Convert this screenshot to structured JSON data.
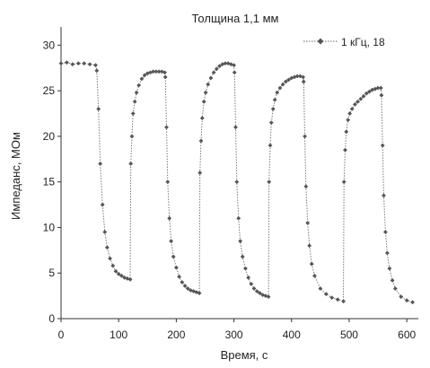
{
  "chart_data": {
    "type": "scatter",
    "title": "Толщина 1,1 мм",
    "xlabel": "Время, с",
    "ylabel": "Импеданс, МОм",
    "xlim": [
      0,
      620
    ],
    "ylim": [
      0,
      32
    ],
    "xticks": [
      0,
      100,
      200,
      300,
      400,
      500,
      600
    ],
    "yticks": [
      0,
      5,
      10,
      15,
      20,
      25,
      30
    ],
    "grid": false,
    "legend_position": "top-right",
    "series": [
      {
        "name": "1 кГц, 18",
        "color": "#555555",
        "marker": "diamond",
        "x": [
          0,
          10,
          20,
          30,
          40,
          50,
          60,
          62,
          65,
          68,
          72,
          76,
          80,
          85,
          90,
          95,
          100,
          105,
          110,
          115,
          120,
          121,
          123,
          125,
          128,
          131,
          135,
          140,
          145,
          150,
          155,
          160,
          165,
          170,
          175,
          180,
          181,
          183,
          185,
          188,
          191,
          195,
          200,
          205,
          210,
          215,
          220,
          225,
          230,
          235,
          240,
          241,
          243,
          245,
          248,
          251,
          255,
          260,
          265,
          270,
          275,
          280,
          285,
          290,
          295,
          300,
          301,
          303,
          305,
          308,
          311,
          315,
          320,
          325,
          330,
          335,
          340,
          345,
          350,
          355,
          360,
          361,
          363,
          365,
          368,
          371,
          375,
          380,
          385,
          390,
          395,
          400,
          405,
          410,
          415,
          420,
          421,
          423,
          425,
          428,
          431,
          435,
          440,
          450,
          460,
          470,
          480,
          490,
          491,
          493,
          495,
          498,
          501,
          505,
          510,
          515,
          520,
          525,
          530,
          535,
          540,
          545,
          550,
          555,
          556,
          558,
          560,
          563,
          566,
          570,
          575,
          580,
          590,
          600,
          610
        ],
        "y": [
          28,
          28.1,
          27.9,
          28,
          28,
          27.9,
          27.8,
          27.2,
          23,
          17,
          12.5,
          9.5,
          7.8,
          6.6,
          5.8,
          5.2,
          4.9,
          4.7,
          4.5,
          4.4,
          4.3,
          17,
          20,
          22.5,
          23.8,
          24.8,
          25.6,
          26.3,
          26.7,
          26.9,
          27,
          27.1,
          27.1,
          27.1,
          27.1,
          27,
          26.5,
          21,
          15,
          11,
          8.5,
          6.8,
          5.6,
          4.6,
          4,
          3.6,
          3.3,
          3.1,
          3,
          2.9,
          2.8,
          16,
          19.5,
          22,
          23.8,
          24.8,
          25.7,
          26.4,
          27,
          27.4,
          27.7,
          27.9,
          28,
          28,
          27.9,
          27.8,
          27,
          21,
          15,
          11,
          8.5,
          6.8,
          5.5,
          4.5,
          3.8,
          3.3,
          3,
          2.8,
          2.6,
          2.5,
          2.4,
          15,
          19,
          21.5,
          23,
          24,
          24.8,
          25.3,
          25.7,
          26,
          26.2,
          26.4,
          26.5,
          26.6,
          26.6,
          26.5,
          26,
          20,
          14.5,
          10.5,
          8,
          6,
          4.7,
          3.3,
          2.7,
          2.3,
          2.1,
          1.9,
          15,
          18.5,
          20.5,
          21.8,
          22.5,
          23,
          23.5,
          23.8,
          24.1,
          24.4,
          24.7,
          24.9,
          25.1,
          25.2,
          25.3,
          25.3,
          24.5,
          19,
          13.5,
          9.5,
          7.2,
          5.5,
          4.2,
          3.3,
          2.4,
          2,
          1.8
        ]
      }
    ]
  }
}
